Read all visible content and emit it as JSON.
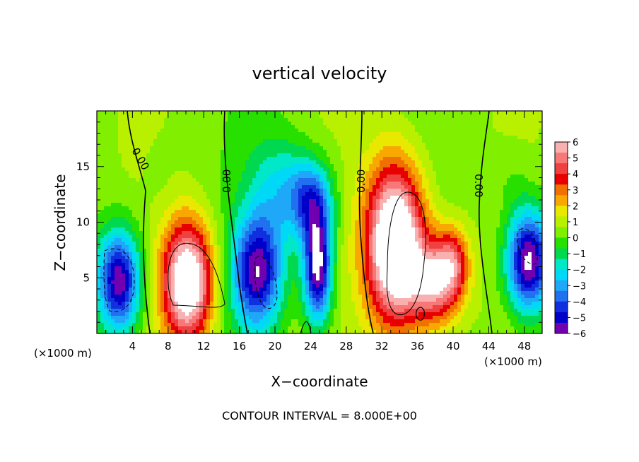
{
  "chart_data": {
    "type": "heatmap",
    "title": "vertical velocity",
    "xlabel": "X−coordinate",
    "ylabel": "Z−coordinate",
    "x_unit_left": "(×1000 m)",
    "x_unit_right": "(×1000 m)",
    "xlim": [
      0,
      50
    ],
    "ylim": [
      0,
      20
    ],
    "x_ticks": [
      "4",
      "8",
      "12",
      "16",
      "20",
      "24",
      "28",
      "32",
      "36",
      "40",
      "44",
      "48"
    ],
    "y_ticks": [
      "5",
      "10",
      "15"
    ],
    "contour_label": "0.00",
    "footer": "CONTOUR INTERVAL = 8.000E+00",
    "colorbar": {
      "labels": [
        "6",
        "5",
        "4",
        "3",
        "2",
        "1",
        "0",
        "−1",
        "−2",
        "−3",
        "−4",
        "−5",
        "−6"
      ],
      "colors": [
        "#f8b0b0",
        "#f87878",
        "#f04040",
        "#e80000",
        "#f07000",
        "#f8a800",
        "#e8e800",
        "#b8f000",
        "#80f000",
        "#28e000",
        "#00d850",
        "#00e8c8",
        "#00d8f8",
        "#20a8f8",
        "#2070f0",
        "#1030e0",
        "#0000c8",
        "#7000b0"
      ]
    },
    "features": [
      {
        "x": 2.5,
        "z": 4.7,
        "w": -6.5,
        "sx": 2.4,
        "sz": 4.6
      },
      {
        "x": 7.0,
        "z": 13.5,
        "w": -0.3,
        "sx": 2.0,
        "sz": 4.0
      },
      {
        "x": 10.2,
        "z": 4.6,
        "w": 7.5,
        "sx": 2.8,
        "sz": 5.4
      },
      {
        "x": 18.0,
        "z": 5.5,
        "w": -6.0,
        "sx": 2.8,
        "sz": 5.0
      },
      {
        "x": 20.5,
        "z": 13.0,
        "w": -2.2,
        "sx": 3.5,
        "sz": 5.0
      },
      {
        "x": 24.8,
        "z": 6.0,
        "w": -7.0,
        "sx": 1.6,
        "sz": 5.0
      },
      {
        "x": 24.0,
        "z": 12.0,
        "w": -4.0,
        "sx": 2.5,
        "sz": 3.5
      },
      {
        "x": 33.5,
        "z": 8.0,
        "w": 8.5,
        "sx": 3.3,
        "sz": 7.2
      },
      {
        "x": 38.0,
        "z": 4.5,
        "w": 5.0,
        "sx": 2.8,
        "sz": 3.8
      },
      {
        "x": 40.0,
        "z": 6.5,
        "w": 3.2,
        "sx": 1.8,
        "sz": 3.2
      },
      {
        "x": 48.5,
        "z": 6.5,
        "w": -7.0,
        "sx": 2.5,
        "sz": 4.6
      },
      {
        "x": 46.5,
        "z": 14.0,
        "w": -0.6,
        "sx": 2.0,
        "sz": 3.0
      }
    ]
  }
}
